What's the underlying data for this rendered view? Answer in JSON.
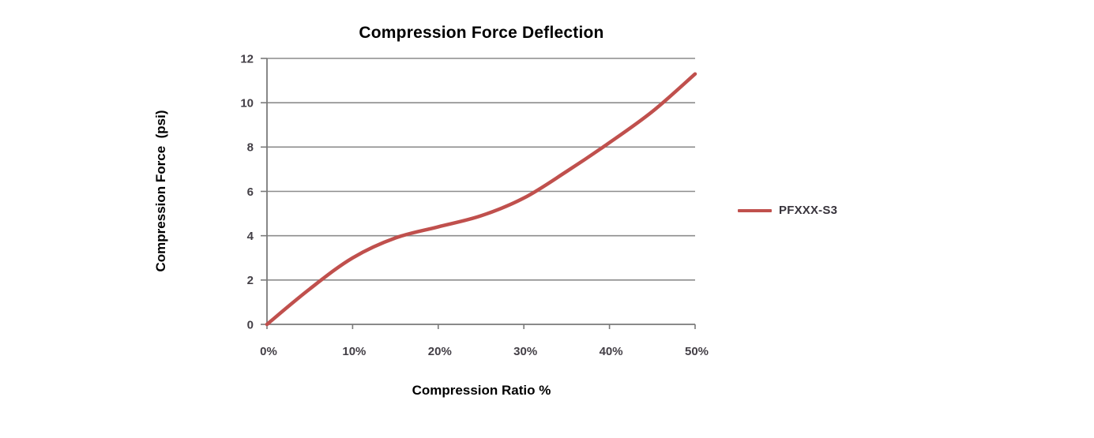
{
  "chart_data": {
    "type": "line",
    "title": "Compression Force Deflection",
    "xlabel": "Compression Ratio %",
    "ylabel": "Compression Force  (psi)",
    "xlim": [
      0,
      50
    ],
    "ylim": [
      0,
      12
    ],
    "x_tick_values": [
      0,
      10,
      20,
      30,
      40,
      50
    ],
    "x_tick_labels": [
      "0%",
      "10%",
      "20%",
      "30%",
      "40%",
      "50%"
    ],
    "y_tick_values": [
      0,
      2,
      4,
      6,
      8,
      10,
      12
    ],
    "y_tick_labels": [
      "0",
      "2",
      "4",
      "6",
      "8",
      "10",
      "12"
    ],
    "grid": "horizontal",
    "legend_position": "right-of-plot",
    "series": [
      {
        "name": "PFXXX-S3",
        "color": "#C0504D",
        "x": [
          0,
          5,
          10,
          15,
          20,
          25,
          30,
          35,
          40,
          45,
          50
        ],
        "y": [
          0,
          1.6,
          3.0,
          3.9,
          4.4,
          4.9,
          5.7,
          6.9,
          8.2,
          9.6,
          11.3
        ]
      }
    ],
    "colors": {
      "line": "#C0504D",
      "gridline": "#8C8C8C",
      "axis": "#7A7A7A",
      "tick_label": "#433F46",
      "title": "#000000"
    }
  }
}
